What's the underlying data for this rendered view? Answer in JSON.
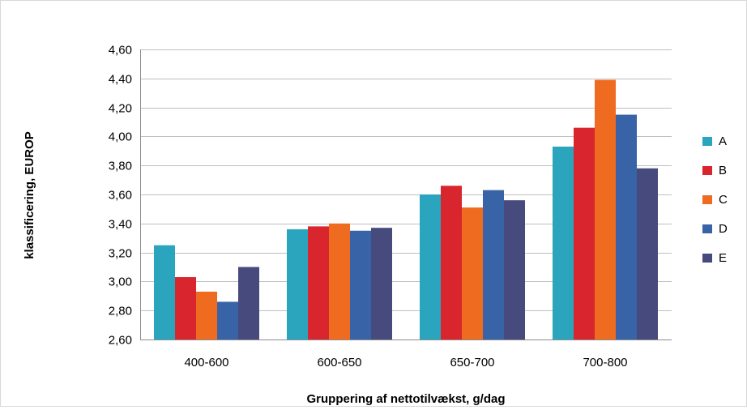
{
  "chart_data": {
    "type": "bar",
    "title": "",
    "xlabel": "Gruppering af nettotilvækst, g/dag",
    "ylabel": "klassificering, EUROP",
    "categories": [
      "400-600",
      "600-650",
      "650-700",
      "700-800"
    ],
    "ylim": [
      2.6,
      4.6
    ],
    "ytick_step": 0.2,
    "y_ticks": [
      "2,60",
      "2,80",
      "3,00",
      "3,20",
      "3,40",
      "3,60",
      "3,80",
      "4,00",
      "4,20",
      "4,40",
      "4,60"
    ],
    "grid": true,
    "legend_position": "right",
    "series": [
      {
        "name": "A",
        "color": "#2aa5bd",
        "values": [
          3.25,
          3.36,
          3.6,
          3.93
        ]
      },
      {
        "name": "B",
        "color": "#d9252e",
        "values": [
          3.03,
          3.38,
          3.66,
          4.06
        ]
      },
      {
        "name": "C",
        "color": "#ef6b20",
        "values": [
          2.93,
          3.4,
          3.51,
          4.39
        ]
      },
      {
        "name": "D",
        "color": "#3863a6",
        "values": [
          2.86,
          3.35,
          3.63,
          4.15
        ]
      },
      {
        "name": "E",
        "color": "#474a7c",
        "values": [
          3.1,
          3.37,
          3.56,
          3.78
        ]
      }
    ]
  }
}
